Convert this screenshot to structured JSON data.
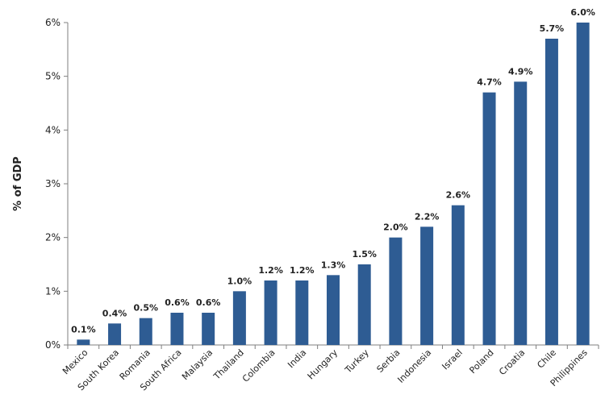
{
  "chart_data": {
    "type": "bar",
    "title": "",
    "xlabel": "",
    "ylabel": "% of GDP",
    "ylim": [
      0,
      6
    ],
    "y_ticks": [
      0,
      1,
      2,
      3,
      4,
      5,
      6
    ],
    "y_tick_labels": [
      "0%",
      "1%",
      "2%",
      "3%",
      "4%",
      "5%",
      "6%"
    ],
    "grid": false,
    "legend": "none",
    "bar_color": "#2e5c93",
    "categories": [
      "Mexico",
      "South Korea",
      "Romania",
      "South Africa",
      "Malaysia",
      "Thailand",
      "Colombia",
      "India",
      "Hungary",
      "Turkey",
      "Serbia",
      "Indonesia",
      "Israel",
      "Poland",
      "Croatia",
      "Chile",
      "Philippines"
    ],
    "values": [
      0.1,
      0.4,
      0.5,
      0.6,
      0.6,
      1.0,
      1.2,
      1.2,
      1.3,
      1.5,
      2.0,
      2.2,
      2.6,
      4.7,
      4.9,
      5.7,
      6.0
    ],
    "data_labels": [
      "0.1%",
      "0.4%",
      "0.5%",
      "0.6%",
      "0.6%",
      "1.0%",
      "1.2%",
      "1.2%",
      "1.3%",
      "1.5%",
      "2.0%",
      "2.2%",
      "2.6%",
      "4.7%",
      "4.9%",
      "5.7%",
      "6.0%"
    ]
  }
}
